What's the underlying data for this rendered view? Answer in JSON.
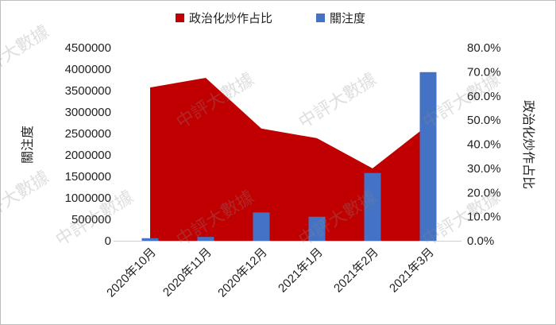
{
  "chart_data": {
    "type": "bar",
    "categories": [
      "2020年10月",
      "2020年11月",
      "2020年12月",
      "2021年1月",
      "2021年2月",
      "2021年3月"
    ],
    "series": [
      {
        "name": "政治化炒作占比",
        "kind": "area",
        "axis": "right",
        "color": "#C00000",
        "values": [
          0.635,
          0.675,
          0.465,
          0.425,
          0.3,
          0.48
        ]
      },
      {
        "name": "關注度",
        "kind": "bar",
        "axis": "left",
        "color": "#4472C4",
        "values": [
          60000,
          90000,
          660000,
          560000,
          1580000,
          3930000
        ]
      }
    ],
    "y_left": {
      "label": "關注度",
      "lim": [
        0,
        4500000
      ],
      "ticks": [
        "0",
        "500000",
        "1000000",
        "1500000",
        "2000000",
        "2500000",
        "3000000",
        "3500000",
        "4000000",
        "4500000"
      ]
    },
    "y_right": {
      "label": "政治化炒作占比",
      "lim": [
        0,
        0.8
      ],
      "ticks": [
        "0.0%",
        "10.0%",
        "20.0%",
        "30.0%",
        "40.0%",
        "50.0%",
        "60.0%",
        "70.0%",
        "80.0%"
      ]
    },
    "legend_position": "top",
    "grid": false
  },
  "watermark": {
    "text": "中評大數據"
  }
}
